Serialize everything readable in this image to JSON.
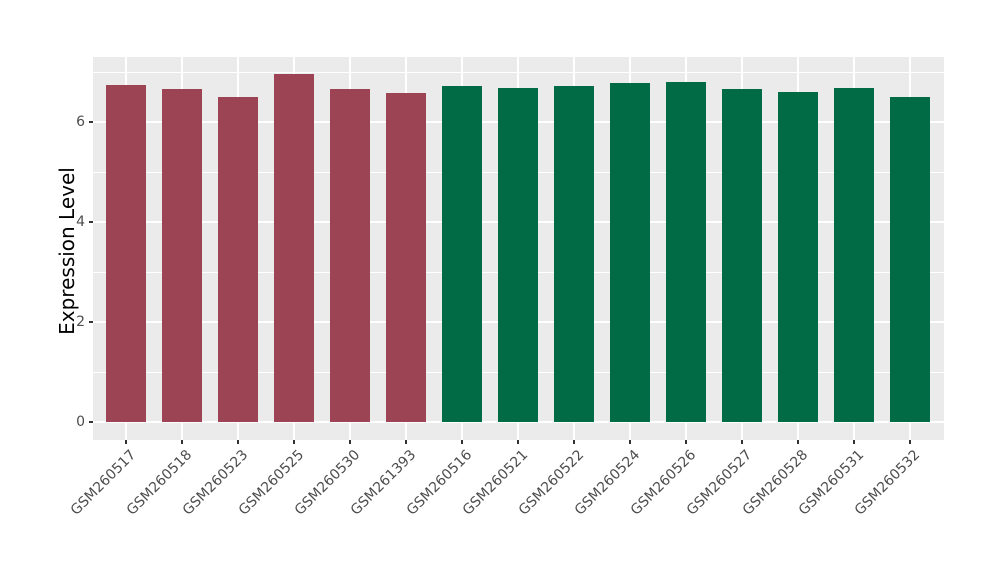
{
  "chart_data": {
    "type": "bar",
    "ylabel": "Expression Level",
    "categories": [
      "GSM260517",
      "GSM260518",
      "GSM260523",
      "GSM260525",
      "GSM260530",
      "GSM261393",
      "GSM260516",
      "GSM260521",
      "GSM260522",
      "GSM260524",
      "GSM260526",
      "GSM260527",
      "GSM260528",
      "GSM260531",
      "GSM260532"
    ],
    "values": [
      6.75,
      6.66,
      6.5,
      6.97,
      6.66,
      6.59,
      6.73,
      6.68,
      6.72,
      6.78,
      6.8,
      6.67,
      6.6,
      6.68,
      6.51
    ],
    "bar_groups": [
      0,
      0,
      0,
      0,
      0,
      0,
      1,
      1,
      1,
      1,
      1,
      1,
      1,
      1,
      1
    ],
    "group_colors": [
      "#9C4453",
      "#006B45"
    ],
    "y_ticks": [
      0,
      2,
      4,
      6
    ],
    "y_minor_ticks": [
      1,
      3,
      5,
      7
    ],
    "ylim": [
      0,
      7.3
    ],
    "grid": true,
    "legend_position": "none"
  },
  "styles": {
    "page_bg": "#FFFFFF",
    "panel_bg": "#EBEBEB",
    "grid_color": "#FFFFFF",
    "tick_mark_color": "#333333",
    "tick_label_color": "#4D4D4D",
    "axis_title_color": "#000000"
  }
}
